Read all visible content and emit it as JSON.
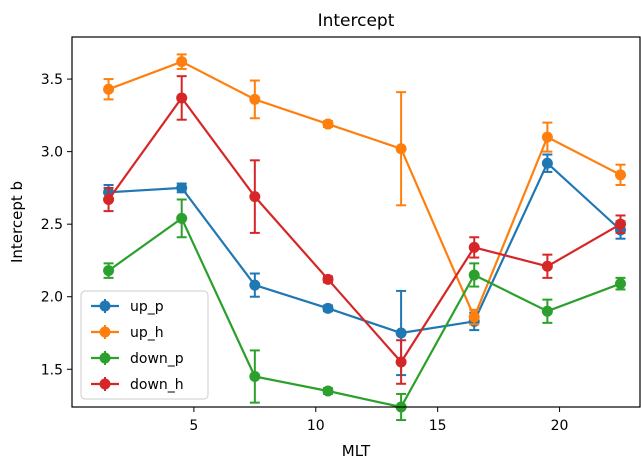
{
  "chart_data": {
    "type": "line",
    "title": "Intercept",
    "xlabel": "MLT",
    "ylabel": "Intercept b",
    "xlim": [
      0,
      23.3
    ],
    "ylim": [
      1.24,
      3.79
    ],
    "xticks": [
      5,
      10,
      15,
      20
    ],
    "yticks": [
      1.5,
      2.0,
      2.5,
      3.0,
      3.5
    ],
    "ytick_labels": [
      "1.5",
      "2.0",
      "2.5",
      "3.0",
      "3.5"
    ],
    "grid": false,
    "legend_position": "lower-left",
    "x": [
      1.5,
      4.5,
      7.5,
      10.5,
      13.5,
      16.5,
      19.5,
      22.5
    ],
    "series": [
      {
        "name": "up_p",
        "color": "#1f77b4",
        "values": [
          2.72,
          2.75,
          2.08,
          1.92,
          1.75,
          1.83,
          2.92,
          2.46
        ],
        "errors": [
          0.05,
          0.03,
          0.08,
          0.02,
          0.29,
          0.06,
          0.06,
          0.06
        ]
      },
      {
        "name": "up_h",
        "color": "#ff7f0e",
        "values": [
          3.43,
          3.62,
          3.36,
          3.19,
          3.02,
          1.86,
          3.1,
          2.84
        ],
        "errors": [
          0.07,
          0.05,
          0.13,
          0.02,
          0.39,
          0.05,
          0.1,
          0.07
        ]
      },
      {
        "name": "down_p",
        "color": "#2ca02c",
        "values": [
          2.18,
          2.54,
          1.45,
          1.35,
          1.24,
          2.15,
          1.9,
          2.09
        ],
        "errors": [
          0.05,
          0.13,
          0.18,
          0.02,
          0.09,
          0.08,
          0.08,
          0.04
        ]
      },
      {
        "name": "down_h",
        "color": "#d62728",
        "values": [
          2.67,
          3.37,
          2.69,
          2.12,
          1.55,
          2.34,
          2.21,
          2.5
        ],
        "errors": [
          0.08,
          0.15,
          0.25,
          0.02,
          0.15,
          0.07,
          0.08,
          0.06
        ]
      }
    ]
  }
}
